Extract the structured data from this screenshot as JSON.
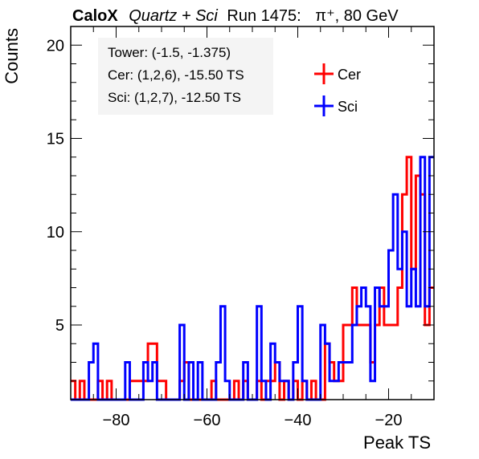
{
  "title": {
    "brand": "CaloX",
    "config": "Quartz + Sci",
    "run": "Run 1475:",
    "particle": "π⁺, 80 GeV"
  },
  "annotations": {
    "tower": "Tower: (-1.5, -1.375)",
    "cer": "Cer: (1,2,6), -15.50 TS",
    "sci": "Sci: (1,2,7), -12.50 TS"
  },
  "chart_data": {
    "type": "histogram",
    "xlabel": "Peak TS",
    "ylabel": "Counts",
    "xlim": [
      -90,
      -10
    ],
    "ylim": [
      1,
      21
    ],
    "x_ticks": [
      -80,
      -60,
      -40,
      -20
    ],
    "y_ticks": [
      5,
      10,
      15,
      20
    ],
    "bin_width": 1,
    "grid": false,
    "legend_position": "top-right",
    "series": [
      {
        "name": "Cer",
        "color": "#ff0000",
        "bin_low_edges": [
          -90,
          -89,
          -88,
          -87,
          -86,
          -85,
          -84,
          -83,
          -82,
          -81,
          -80,
          -79,
          -78,
          -77,
          -76,
          -75,
          -74,
          -73,
          -72,
          -71,
          -70,
          -69,
          -68,
          -67,
          -66,
          -65,
          -64,
          -63,
          -62,
          -61,
          -60,
          -59,
          -58,
          -57,
          -56,
          -55,
          -54,
          -53,
          -52,
          -51,
          -50,
          -49,
          -48,
          -47,
          -46,
          -45,
          -44,
          -43,
          -42,
          -41,
          -40,
          -39,
          -38,
          -37,
          -36,
          -35,
          -34,
          -33,
          -32,
          -31,
          -30,
          -29,
          -28,
          -27,
          -26,
          -25,
          -24,
          -23,
          -22,
          -21,
          -20,
          -19,
          -18,
          -17,
          -16,
          -15,
          -14,
          -13,
          -12,
          -11
        ],
        "counts": [
          2,
          1,
          2,
          1,
          1,
          1,
          2,
          1,
          2,
          1,
          1,
          1,
          1,
          2,
          2,
          2,
          2,
          4,
          4,
          2,
          2,
          1,
          1,
          1,
          2,
          3,
          1,
          1,
          1,
          1,
          1,
          2,
          1,
          1,
          1,
          1,
          2,
          1,
          2,
          1,
          1,
          2,
          1,
          2,
          2,
          3,
          1,
          2,
          1,
          2,
          1,
          2,
          1,
          2,
          1,
          1,
          4,
          3,
          2,
          2,
          5,
          5,
          7,
          5,
          5,
          5,
          3,
          5,
          7,
          5,
          5,
          5,
          7,
          12,
          14,
          8,
          13,
          12,
          5,
          7
        ]
      },
      {
        "name": "Sci",
        "color": "#0000ff",
        "bin_low_edges": [
          -90,
          -89,
          -88,
          -87,
          -86,
          -85,
          -84,
          -83,
          -82,
          -81,
          -80,
          -79,
          -78,
          -77,
          -76,
          -75,
          -74,
          -73,
          -72,
          -71,
          -70,
          -69,
          -68,
          -67,
          -66,
          -65,
          -64,
          -63,
          -62,
          -61,
          -60,
          -59,
          -58,
          -57,
          -56,
          -55,
          -54,
          -53,
          -52,
          -51,
          -50,
          -49,
          -48,
          -47,
          -46,
          -45,
          -44,
          -43,
          -42,
          -41,
          -40,
          -39,
          -38,
          -37,
          -36,
          -35,
          -34,
          -33,
          -32,
          -31,
          -30,
          -29,
          -28,
          -27,
          -26,
          -25,
          -24,
          -23,
          -22,
          -21,
          -20,
          -19,
          -18,
          -17,
          -16,
          -15,
          -14,
          -13,
          -12,
          -11
        ],
        "counts": [
          1,
          1,
          1,
          1,
          3,
          4,
          1,
          1,
          1,
          1,
          1,
          1,
          3,
          1,
          1,
          1,
          3,
          2,
          3,
          1,
          1,
          1,
          1,
          1,
          5,
          1,
          3,
          1,
          3,
          1,
          1,
          1,
          3,
          6,
          2,
          1,
          1,
          1,
          3,
          1,
          1,
          6,
          2,
          1,
          4,
          3,
          2,
          2,
          1,
          3,
          6,
          2,
          1,
          1,
          1,
          5,
          4,
          2,
          2,
          3,
          3,
          3,
          5,
          6,
          7,
          6,
          2,
          7,
          6,
          6,
          9,
          12,
          8,
          10,
          6,
          8,
          6,
          14,
          6,
          14
        ]
      }
    ]
  }
}
